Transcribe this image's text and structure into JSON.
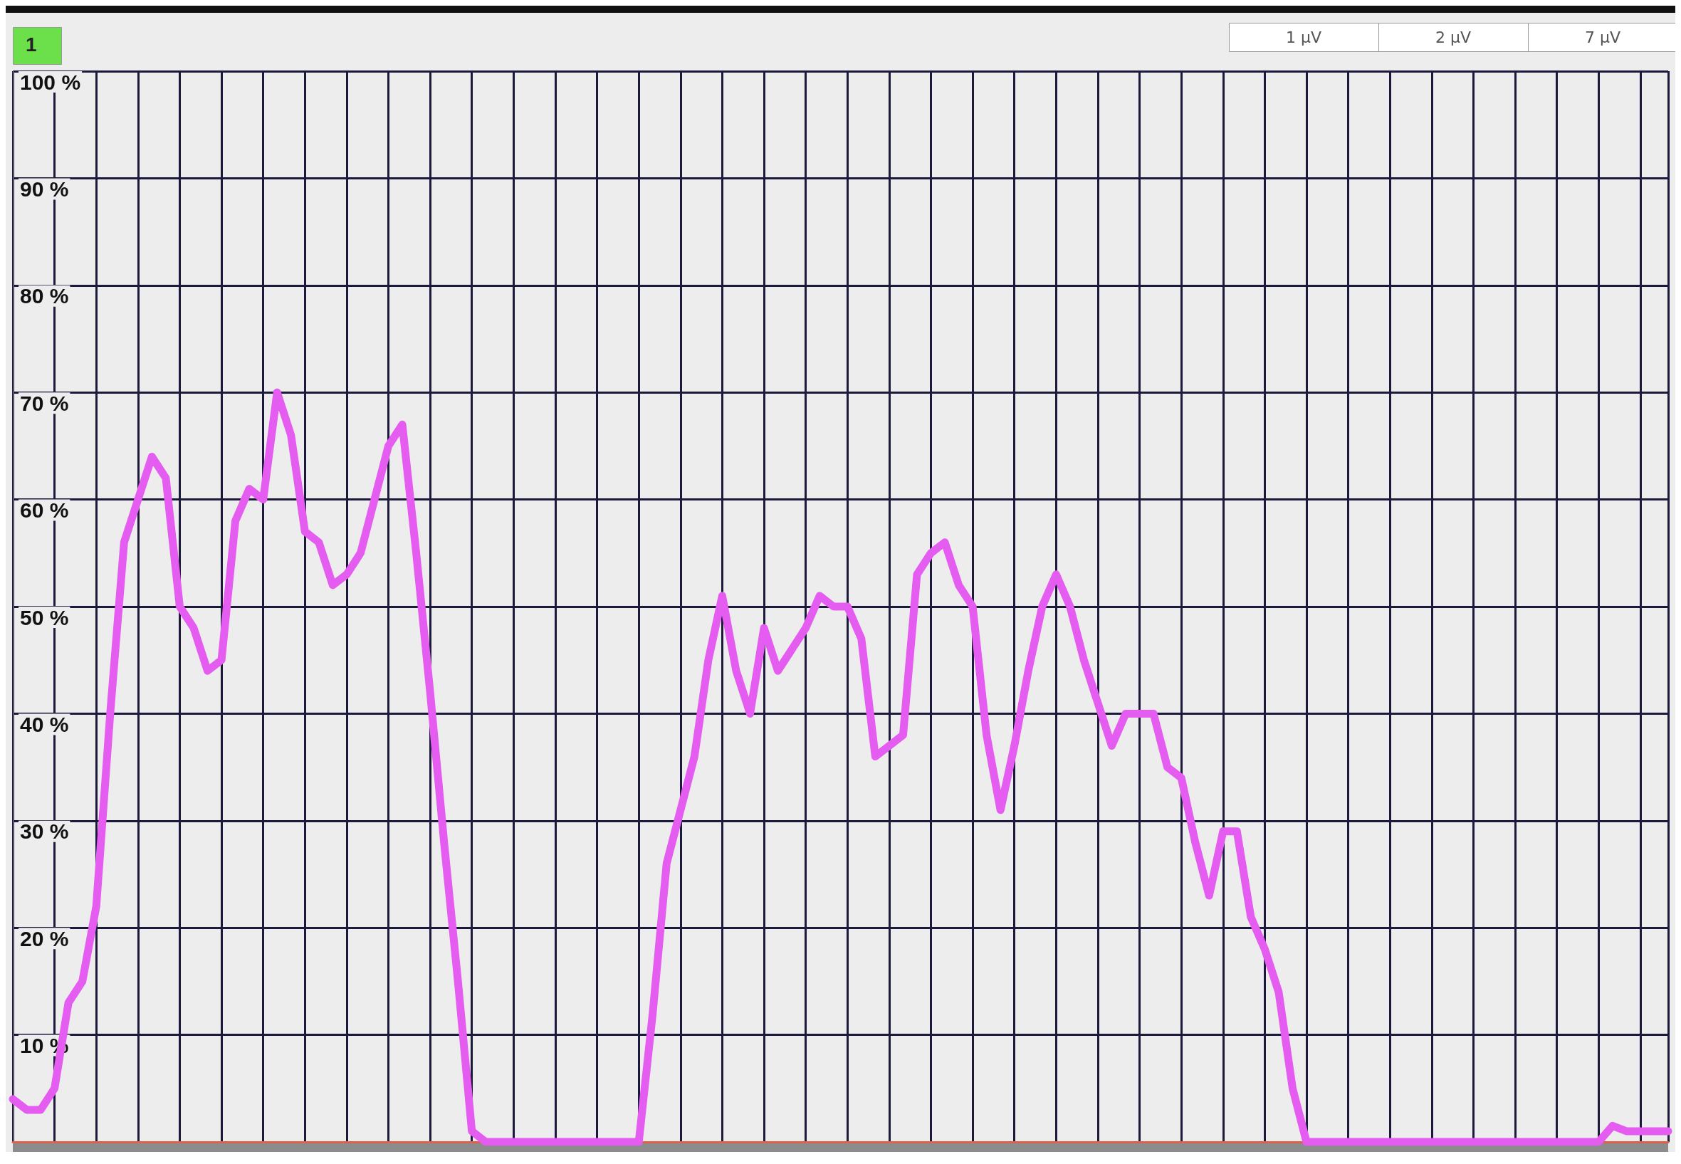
{
  "chart_data": {
    "type": "line",
    "annotations": [
      "1",
      "1 µV",
      "2 µV",
      "7 µV"
    ],
    "categories": [
      null,
      null,
      null,
      null,
      null,
      null,
      null,
      null,
      null,
      null,
      null,
      null,
      null,
      null,
      null,
      null,
      null,
      null,
      null,
      null,
      null,
      null,
      null,
      null,
      null,
      null,
      null,
      null,
      null,
      null,
      null,
      null,
      null,
      null,
      null,
      null,
      null,
      null,
      null,
      null,
      null,
      null,
      null,
      null,
      null,
      null,
      null,
      null,
      null,
      null,
      null,
      null,
      null,
      null,
      null,
      null,
      null,
      null,
      null,
      null,
      null,
      null,
      null,
      null,
      null,
      null,
      null,
      null,
      null,
      null,
      null,
      null,
      null,
      null,
      null,
      null,
      null,
      null,
      null,
      null,
      null,
      null,
      null,
      null,
      null,
      null,
      null,
      null,
      null,
      null,
      null,
      null,
      null,
      null,
      null,
      null,
      null,
      null,
      null,
      null,
      null,
      null,
      null,
      null,
      null,
      null,
      null,
      null,
      null,
      null,
      null,
      null,
      null,
      null,
      null,
      null,
      null,
      null,
      null,
      null
    ],
    "series": [
      {
        "color": "#e45cf0",
        "values": [
          4,
          3,
          3,
          5,
          13,
          15,
          22,
          40,
          56,
          60,
          64,
          62,
          50,
          48,
          44,
          45,
          58,
          61,
          60,
          70,
          66,
          57,
          56,
          52,
          53,
          55,
          60,
          65,
          67,
          55,
          42,
          28,
          15,
          1,
          0,
          0,
          0,
          0,
          0,
          0,
          0,
          0,
          0,
          0,
          0,
          0,
          12,
          26,
          31,
          36,
          45,
          51,
          44,
          40,
          48,
          44,
          46,
          48,
          51,
          50,
          50,
          47,
          36,
          37,
          38,
          53,
          55,
          56,
          52,
          50,
          38,
          31,
          37,
          44,
          50,
          53,
          50,
          45,
          41,
          37,
          40,
          40,
          40,
          35,
          34,
          28,
          23,
          29,
          29,
          21,
          18,
          14,
          5,
          0,
          0,
          0,
          0,
          0,
          0,
          0,
          0,
          0,
          0,
          0,
          0,
          0,
          0,
          0,
          0,
          0,
          0,
          0,
          0,
          0,
          0,
          1.5,
          1,
          1,
          1,
          1
        ]
      }
    ],
    "ylim": [
      0,
      100
    ],
    "yticks": [
      {
        "value": 0,
        "label": null
      },
      {
        "value": 10,
        "label": "10 %"
      },
      {
        "value": 20,
        "label": "20 %"
      },
      {
        "value": 30,
        "label": "30 %"
      },
      {
        "value": 40,
        "label": "40 %"
      },
      {
        "value": 50,
        "label": "50 %"
      },
      {
        "value": 60,
        "label": "60 %"
      },
      {
        "value": 70,
        "label": "70 %"
      },
      {
        "value": 80,
        "label": "80 %"
      },
      {
        "value": 90,
        "label": "90 %"
      },
      {
        "value": 100,
        "label": "100 %"
      }
    ],
    "grid": true,
    "tick_labels": "y",
    "line_style": "solid"
  }
}
